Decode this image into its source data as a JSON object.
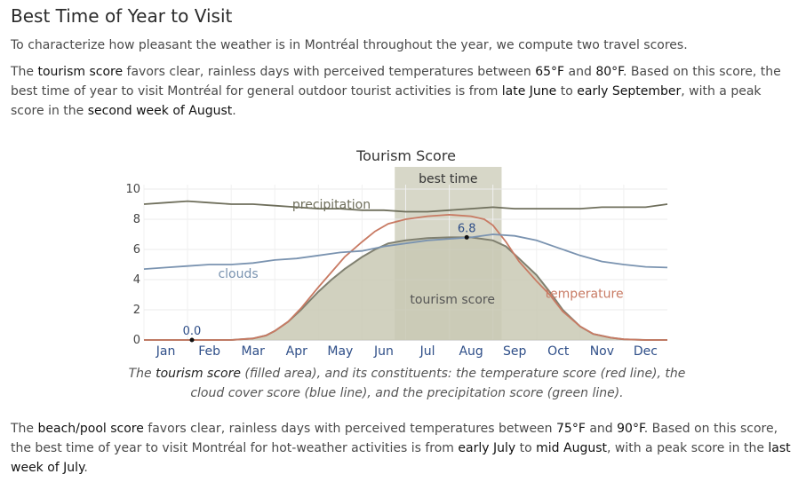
{
  "heading": "Best Time of Year to Visit",
  "intro": "To characterize how pleasant the weather is in Montréal throughout the year, we compute two travel scores.",
  "tourism_paragraph": {
    "t1": "The ",
    "score_name": "tourism score",
    "t2": " favors clear, rainless days with perceived temperatures between ",
    "temp_low": "65°F",
    "t3": " and ",
    "temp_high": "80°F",
    "t4": ". Based on this score, the best time of year to visit Montréal for general outdoor tourist activities is from ",
    "start": "late June",
    "t5": " to ",
    "end": "early September",
    "t6": ", with a peak score in the ",
    "peak": "second week of August",
    "t7": "."
  },
  "caption": {
    "c1": "The ",
    "score_name": "tourism score",
    "c2": " (filled area), and its constituents: the temperature score (red line), the cloud cover score (blue line), and the precipitation score (green line)."
  },
  "beach_paragraph": {
    "t1": "The ",
    "score_name": "beach/pool score",
    "t2": " favors clear, rainless days with perceived temperatures between ",
    "temp_low": "75°F",
    "t3": " and ",
    "temp_high": "90°F",
    "t4": ". Based on this score, the best time of year to visit Montréal for hot-weather activities is from ",
    "start": "early July",
    "t5": " to ",
    "end": "mid August",
    "t6": ", with a peak score in the ",
    "peak": "last week of July",
    "t7": "."
  },
  "chart_data": {
    "type": "area",
    "title": "Tourism Score",
    "xlabel": "",
    "ylabel": "",
    "ylim": [
      0,
      10
    ],
    "yticks": [
      0,
      2,
      4,
      6,
      8,
      10
    ],
    "grid": true,
    "months": [
      "Jan",
      "Feb",
      "Mar",
      "Apr",
      "May",
      "Jun",
      "Jul",
      "Aug",
      "Sep",
      "Oct",
      "Nov",
      "Dec"
    ],
    "x_unit": "month (0 = Jan 1, 12 = Dec 31)",
    "best_time": {
      "label": "best time",
      "from": 5.75,
      "to": 8.2
    },
    "series": [
      {
        "name": "tourism score",
        "style": "filled",
        "color": "#808070",
        "fill": "#c9c9b4",
        "points": [
          [
            0,
            0
          ],
          [
            1,
            0
          ],
          [
            1.5,
            0
          ],
          [
            2,
            0
          ],
          [
            2.5,
            0.1
          ],
          [
            2.8,
            0.3
          ],
          [
            3,
            0.6
          ],
          [
            3.3,
            1.2
          ],
          [
            3.6,
            2.0
          ],
          [
            4,
            3.2
          ],
          [
            4.3,
            4.0
          ],
          [
            4.6,
            4.7
          ],
          [
            5,
            5.5
          ],
          [
            5.3,
            6.0
          ],
          [
            5.6,
            6.4
          ],
          [
            6,
            6.6
          ],
          [
            6.5,
            6.75
          ],
          [
            7,
            6.8
          ],
          [
            7.5,
            6.8
          ],
          [
            8,
            6.6
          ],
          [
            8.3,
            6.2
          ],
          [
            8.6,
            5.4
          ],
          [
            9,
            4.3
          ],
          [
            9.3,
            3.2
          ],
          [
            9.6,
            2.0
          ],
          [
            10,
            0.9
          ],
          [
            10.3,
            0.4
          ],
          [
            10.7,
            0.15
          ],
          [
            11,
            0.05
          ],
          [
            11.5,
            0
          ],
          [
            12,
            0
          ]
        ]
      },
      {
        "name": "temperature",
        "style": "line",
        "color": "#c87a63",
        "points": [
          [
            0,
            0
          ],
          [
            1,
            0
          ],
          [
            1.5,
            0
          ],
          [
            2,
            0
          ],
          [
            2.5,
            0.1
          ],
          [
            2.8,
            0.3
          ],
          [
            3,
            0.6
          ],
          [
            3.3,
            1.2
          ],
          [
            3.6,
            2.1
          ],
          [
            4,
            3.5
          ],
          [
            4.3,
            4.5
          ],
          [
            4.6,
            5.5
          ],
          [
            5,
            6.5
          ],
          [
            5.3,
            7.2
          ],
          [
            5.6,
            7.7
          ],
          [
            6,
            8.0
          ],
          [
            6.5,
            8.2
          ],
          [
            7,
            8.3
          ],
          [
            7.5,
            8.2
          ],
          [
            7.8,
            8.0
          ],
          [
            8,
            7.6
          ],
          [
            8.3,
            6.5
          ],
          [
            8.6,
            5.2
          ],
          [
            9,
            3.9
          ],
          [
            9.3,
            3.0
          ],
          [
            9.6,
            1.9
          ],
          [
            10,
            0.9
          ],
          [
            10.3,
            0.4
          ],
          [
            10.7,
            0.15
          ],
          [
            11,
            0.05
          ],
          [
            11.5,
            0
          ],
          [
            12,
            0
          ]
        ]
      },
      {
        "name": "clouds",
        "style": "line",
        "color": "#7a93b0",
        "points": [
          [
            0,
            4.7
          ],
          [
            0.5,
            4.8
          ],
          [
            1,
            4.9
          ],
          [
            1.5,
            5.0
          ],
          [
            2,
            5.0
          ],
          [
            2.5,
            5.1
          ],
          [
            3,
            5.3
          ],
          [
            3.5,
            5.4
          ],
          [
            4,
            5.6
          ],
          [
            4.5,
            5.8
          ],
          [
            5,
            5.9
          ],
          [
            5.5,
            6.2
          ],
          [
            6,
            6.4
          ],
          [
            6.5,
            6.6
          ],
          [
            7,
            6.7
          ],
          [
            7.5,
            6.8
          ],
          [
            8,
            7.0
          ],
          [
            8.5,
            6.9
          ],
          [
            9,
            6.6
          ],
          [
            9.5,
            6.1
          ],
          [
            10,
            5.6
          ],
          [
            10.5,
            5.2
          ],
          [
            11,
            5.0
          ],
          [
            11.5,
            4.85
          ],
          [
            12,
            4.8
          ]
        ]
      },
      {
        "name": "precipitation",
        "style": "line",
        "color": "#6f6f5c",
        "points": [
          [
            0,
            9.0
          ],
          [
            0.5,
            9.1
          ],
          [
            1,
            9.2
          ],
          [
            1.5,
            9.1
          ],
          [
            2,
            9.0
          ],
          [
            2.5,
            9.0
          ],
          [
            3,
            8.9
          ],
          [
            3.5,
            8.8
          ],
          [
            4,
            8.7
          ],
          [
            4.5,
            8.7
          ],
          [
            5,
            8.6
          ],
          [
            5.5,
            8.6
          ],
          [
            6,
            8.5
          ],
          [
            6.5,
            8.5
          ],
          [
            7,
            8.6
          ],
          [
            7.5,
            8.7
          ],
          [
            8,
            8.8
          ],
          [
            8.5,
            8.7
          ],
          [
            9,
            8.7
          ],
          [
            9.5,
            8.7
          ],
          [
            10,
            8.7
          ],
          [
            10.5,
            8.8
          ],
          [
            11,
            8.8
          ],
          [
            11.5,
            8.8
          ],
          [
            12,
            9.0
          ]
        ]
      }
    ],
    "series_labels": [
      {
        "text": "precipitation",
        "series": "precipitation",
        "x": 3.4,
        "y": 9.0
      },
      {
        "text": "clouds",
        "series": "clouds",
        "x": 1.7,
        "y": 4.4
      },
      {
        "text": "tourism score",
        "series": "tourism score",
        "x": 6.1,
        "y": 2.7
      },
      {
        "text": "temperature",
        "series": "temperature",
        "x": 9.2,
        "y": 3.1
      }
    ],
    "annotations": [
      {
        "text": "0.0",
        "x": 1.1,
        "y": 0
      },
      {
        "text": "6.8",
        "x": 7.4,
        "y": 6.8
      }
    ]
  }
}
